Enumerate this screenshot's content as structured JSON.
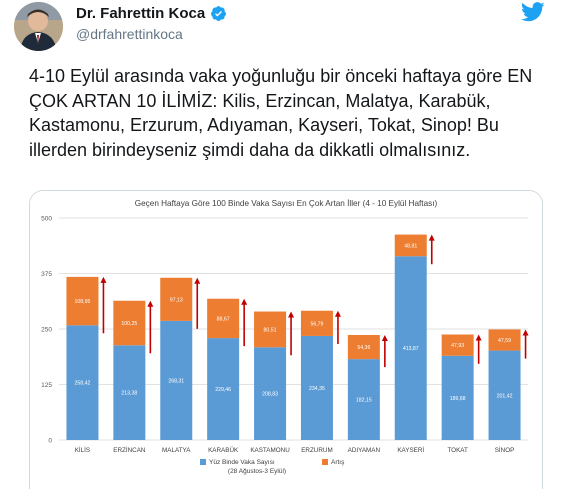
{
  "tweet": {
    "author_name": "Dr. Fahrettin Koca",
    "handle": "@drfahrettinkoca",
    "text": "4-10 Eylül arasında vaka yoğunluğu bir önceki haftaya göre EN ÇOK ARTAN 10 İLİMİZ: Kilis, Erzincan, Malatya, Karabük, Kastamonu, Erzurum, Adıyaman, Kayseri, Tokat, Sinop! Bu illerden birindeyseniz şimdi daha da dikkatli olmalısınız."
  },
  "icons": {
    "verified": "verified-badge-icon",
    "platform": "twitter-bird-icon"
  },
  "colors": {
    "base": "#5b9bd5",
    "increase": "#ed7d31",
    "arrow": "#c00000",
    "verified": "#1da1f2",
    "bird": "#1da1f2"
  },
  "chart_data": {
    "type": "bar",
    "stacked": true,
    "title": "Geçen Haftaya Göre 100 Binde Vaka Sayısı En Çok Artan İller (4 - 10 Eylül Haftası)",
    "categories": [
      "KİLİS",
      "ERZİNCAN",
      "MALATYA",
      "KARABÜK",
      "KASTAMONU",
      "ERZURUM",
      "ADIYAMAN",
      "KAYSERİ",
      "TOKAT",
      "SİNOP"
    ],
    "series": [
      {
        "name": "Yüz Binde Vaka Sayısı",
        "values": [
          258.42,
          213.38,
          268.31,
          229.46,
          208.83,
          234.35,
          182.15,
          413.87,
          189.68,
          201.42
        ]
      },
      {
        "name": "Artış",
        "values": [
          108.95,
          100.25,
          97.13,
          88.67,
          80.51,
          56.79,
          54.36,
          48.81,
          47.93,
          47.59
        ]
      }
    ],
    "series_note": "(28 Ağustos-3 Eylül)",
    "y_ticks": [
      0,
      125,
      250,
      375,
      500
    ],
    "ylim": [
      0,
      500
    ],
    "grid": true,
    "legend_position": "bottom"
  }
}
